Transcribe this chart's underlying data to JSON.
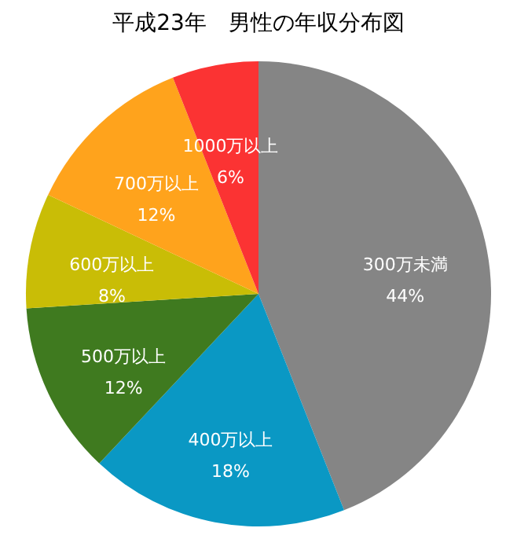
{
  "chart_data": {
    "type": "pie",
    "title": "平成23年　男性の年収分布図",
    "categories": [
      "300万未満",
      "400万以上",
      "500万以上",
      "600万以上",
      "700万以上",
      "1000万以上"
    ],
    "values": [
      44,
      18,
      12,
      8,
      12,
      6
    ],
    "value_labels": [
      "44%",
      "18%",
      "12%",
      "8%",
      "12%",
      "6%"
    ],
    "colors": [
      "#858585",
      "#0a98c4",
      "#3f7a1f",
      "#c9bd06",
      "#ffa31c",
      "#fb3333"
    ],
    "legend": false
  }
}
